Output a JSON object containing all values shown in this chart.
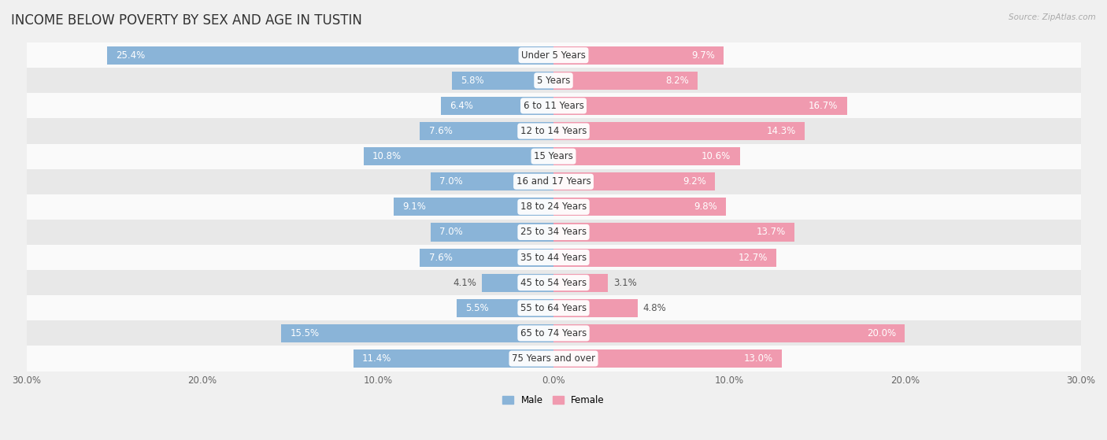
{
  "title": "INCOME BELOW POVERTY BY SEX AND AGE IN TUSTIN",
  "source": "Source: ZipAtlas.com",
  "categories": [
    "Under 5 Years",
    "5 Years",
    "6 to 11 Years",
    "12 to 14 Years",
    "15 Years",
    "16 and 17 Years",
    "18 to 24 Years",
    "25 to 34 Years",
    "35 to 44 Years",
    "45 to 54 Years",
    "55 to 64 Years",
    "65 to 74 Years",
    "75 Years and over"
  ],
  "male": [
    25.4,
    5.8,
    6.4,
    7.6,
    10.8,
    7.0,
    9.1,
    7.0,
    7.6,
    4.1,
    5.5,
    15.5,
    11.4
  ],
  "female": [
    9.7,
    8.2,
    16.7,
    14.3,
    10.6,
    9.2,
    9.8,
    13.7,
    12.7,
    3.1,
    4.8,
    20.0,
    13.0
  ],
  "male_color": "#8ab4d8",
  "female_color": "#f09aaf",
  "male_label": "Male",
  "female_label": "Female",
  "xlim": 30.0,
  "background_color": "#f0f0f0",
  "row_bg_light": "#fafafa",
  "row_bg_dark": "#e8e8e8",
  "bar_height": 0.72,
  "title_fontsize": 12,
  "label_fontsize": 8.5,
  "cat_fontsize": 8.5,
  "tick_fontsize": 8.5,
  "source_fontsize": 7.5
}
